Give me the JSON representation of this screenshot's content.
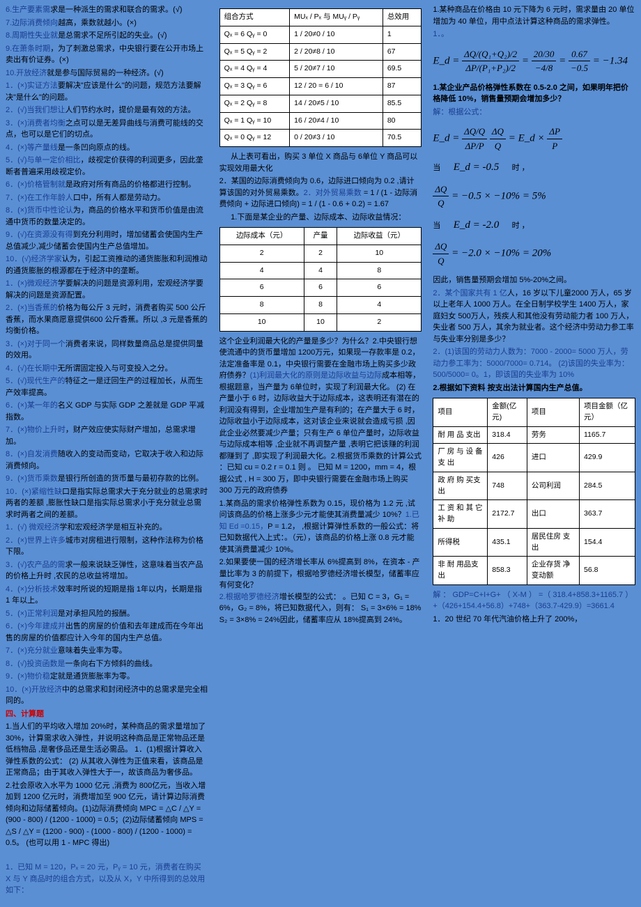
{
  "col1": {
    "items": [
      {
        "cls": "blue",
        "t": "6.生产要素需"
      },
      {
        "cls": "black",
        "t": "求是一种派生的需求和联合的需求。(√)",
        "inline": true
      },
      {
        "cls": "blue",
        "t": "7.边际消费倾向"
      },
      {
        "cls": "black",
        "t": "越高，乘数就越小。(×)",
        "inline": true
      },
      {
        "cls": "blue",
        "t": "8.周期性失业就"
      },
      {
        "cls": "black",
        "t": "是总需求不足所引起的失业。(√)",
        "inline": true
      },
      {
        "cls": "blue",
        "t": "9.在萧条时期"
      },
      {
        "cls": "black",
        "t": "，为了刺激总需求，中央银行要在公开市场上卖出有价证券。(×)",
        "inline": true
      },
      {
        "cls": "blue",
        "t": "10.开放经济"
      },
      {
        "cls": "black",
        "t": "就是参与国际贸易的一种经济。(√)",
        "inline": true
      },
      {
        "cls": "num",
        "t": "1．(×)"
      },
      {
        "cls": "blue",
        "t": "实证方法",
        "inline": true
      },
      {
        "cls": "black",
        "t": "要解决\"应该是什么\"的问题，规范方法要解决\"是什么\"的问题。",
        "inline": true
      },
      {
        "cls": "num",
        "t": "2．(√)"
      },
      {
        "cls": "blue",
        "t": "当我们想让",
        "inline": true
      },
      {
        "cls": "black",
        "t": "人们节约水时，提价是最有效的方法。",
        "inline": true
      },
      {
        "cls": "num",
        "t": "3．(×)"
      },
      {
        "cls": "blue",
        "t": "消费者均衡",
        "inline": true
      },
      {
        "cls": "black",
        "t": "之点可以是无差异曲线与消费可能线的交点，也可以是它们的切点。",
        "inline": true
      },
      {
        "cls": "num",
        "t": "4．(×)"
      },
      {
        "cls": "blue",
        "t": "等产量线",
        "inline": true
      },
      {
        "cls": "black",
        "t": "是一条凹向原点的线。",
        "inline": true
      },
      {
        "cls": "num",
        "t": "5．(√)"
      },
      {
        "cls": "blue",
        "t": "与单一定价相比",
        "inline": true
      },
      {
        "cls": "black",
        "t": "，歧视定价获得的利润更多，因此垄断者普遍采用歧视定价。",
        "inline": true
      },
      {
        "cls": "num",
        "t": "6．(×)"
      },
      {
        "cls": "blue",
        "t": "价格管制就",
        "inline": true
      },
      {
        "cls": "black",
        "t": "是政府对所有商品的价格都进行控制。",
        "inline": true
      },
      {
        "cls": "num",
        "t": "7．(×)"
      },
      {
        "cls": "blue",
        "t": "在工作年龄人",
        "inline": true
      },
      {
        "cls": "black",
        "t": "口中，所有人都是劳动力。",
        "inline": true
      },
      {
        "cls": "num",
        "t": "8．(×)"
      },
      {
        "cls": "blue",
        "t": "货币中性论认",
        "inline": true
      },
      {
        "cls": "black",
        "t": "为，商品的价格水平和货币价值是由流通中货币的数量决定的。",
        "inline": true
      },
      {
        "cls": "num",
        "t": "9．(√)"
      },
      {
        "cls": "blue",
        "t": "在资源没有得",
        "inline": true
      },
      {
        "cls": "black",
        "t": "到充分利用时，增加储蓄会使国内生产总值减少,减少储蓄会使国内生产总值增加。",
        "inline": true
      },
      {
        "cls": "num",
        "t": "10．(√)"
      },
      {
        "cls": "blue",
        "t": "经济学家",
        "inline": true
      },
      {
        "cls": "black",
        "t": "认为，引起工资推动的通货膨胀和利润推动的通货膨胀的根源都在于经济中的垄断。",
        "inline": true
      },
      {
        "cls": "num",
        "t": "1．(×)"
      },
      {
        "cls": "blue",
        "t": "微观经济",
        "inline": true
      },
      {
        "cls": "black",
        "t": "学要解决的问题是资源利用，宏观经济学要解决的问题是资源配置。",
        "inline": true
      },
      {
        "cls": "num",
        "t": "2．(×)"
      },
      {
        "cls": "blue",
        "t": "当香蕉的",
        "inline": true
      },
      {
        "cls": "black",
        "t": "价格为每公斤 3 元时，消费者购买 500 公斤香蕉，而水果商愿意提供600 公斤香蕉。所以 ,3 元是香蕉的均衡价格。",
        "inline": true
      },
      {
        "cls": "num",
        "t": "3．(×)"
      },
      {
        "cls": "blue",
        "t": "对于同一个",
        "inline": true
      },
      {
        "cls": "black",
        "t": "消费者来说，同样数量商品总是提供同量的效用。",
        "inline": true
      },
      {
        "cls": "num",
        "t": "4．(√)"
      },
      {
        "cls": "blue",
        "t": "在长期中",
        "inline": true
      },
      {
        "cls": "black",
        "t": "无所谓固定投入与可变投入之分。",
        "inline": true
      },
      {
        "cls": "num",
        "t": "5．(√)"
      },
      {
        "cls": "blue",
        "t": "现代生产的",
        "inline": true
      },
      {
        "cls": "black",
        "t": "特征之一是迂回生产的过程加长，从而生产效率提高。",
        "inline": true
      },
      {
        "cls": "num",
        "t": "6．(×)"
      },
      {
        "cls": "blue",
        "t": "某一年的",
        "inline": true
      },
      {
        "cls": "black",
        "t": "名义 GDP 与实际 GDP 之差就是 GDP 平减指数。",
        "inline": true
      },
      {
        "cls": "num",
        "t": "7．(×)"
      },
      {
        "cls": "blue",
        "t": "物价上升时",
        "inline": true
      },
      {
        "cls": "black",
        "t": "，财产效应使实际财产增加，总需求增加。",
        "inline": true
      },
      {
        "cls": "num",
        "t": "8．(×)"
      },
      {
        "cls": "blue",
        "t": "自发消费",
        "inline": true
      },
      {
        "cls": "black",
        "t": "随收入的变动而变动，它取决于收入和边际消费倾向。",
        "inline": true
      },
      {
        "cls": "num",
        "t": "9．(×)"
      },
      {
        "cls": "blue",
        "t": "货币乘数",
        "inline": true
      },
      {
        "cls": "black",
        "t": "是银行所创造的货币量与最初存款的比例。",
        "inline": true
      },
      {
        "cls": "blue",
        "t": "10．(×)"
      },
      {
        "cls": "blue",
        "t": "紧缩性缺",
        "inline": true
      },
      {
        "cls": "black",
        "t": "口是指实际总需求大于充分就业的总需求时两者的差额 ,膨胀性缺口是指实际总需求小于充分就业总需求时两者之间的差额。",
        "inline": true
      },
      {
        "cls": "num",
        "t": "1．(√) "
      },
      {
        "cls": "blue",
        "t": "微观经济",
        "inline": true
      },
      {
        "cls": "black",
        "t": "学和宏观经济学是相互补充的。",
        "inline": true
      },
      {
        "cls": "num",
        "t": "2．(×)"
      },
      {
        "cls": "blue",
        "t": "世界上许多",
        "inline": true
      },
      {
        "cls": "black",
        "t": "城市对房租进行限制，这种作法称为价格下限。",
        "inline": true
      },
      {
        "cls": "num",
        "t": "3．(√)"
      },
      {
        "cls": "blue",
        "t": "农产品的需",
        "inline": true
      },
      {
        "cls": "black",
        "t": "求一般来说缺乏弹性，这意味着当农产品的价格上升时 ,农民的总收益将增加。",
        "inline": true
      },
      {
        "cls": "num",
        "t": "4．(×)"
      },
      {
        "cls": "blue",
        "t": "分析技术",
        "inline": true
      },
      {
        "cls": "black",
        "t": "效率时所说的短期是指 1年以内，长期是指 1 年以上。",
        "inline": true
      },
      {
        "cls": "num",
        "t": "5．(×)"
      },
      {
        "cls": "blue",
        "t": "正常利润",
        "inline": true
      },
      {
        "cls": "black",
        "t": "是对承担风险的报酬。",
        "inline": true
      },
      {
        "cls": "num",
        "t": "6．(×)"
      },
      {
        "cls": "blue",
        "t": "今年建成并",
        "inline": true
      },
      {
        "cls": "black",
        "t": "出售的房屋的价值和去年建成而在今年出售的房屋的价值都应计入今年的国内生产总值。",
        "inline": true
      },
      {
        "cls": "num",
        "t": "7．(×)"
      },
      {
        "cls": "blue",
        "t": "充分就业",
        "inline": true
      },
      {
        "cls": "black",
        "t": "意味着失业率为零。",
        "inline": true
      },
      {
        "cls": "num",
        "t": "8．(√)"
      },
      {
        "cls": "blue",
        "t": "投资函数是",
        "inline": true
      },
      {
        "cls": "black",
        "t": "一条向右下方倾斜的曲线。",
        "inline": true
      },
      {
        "cls": "num",
        "t": "9．(×)"
      },
      {
        "cls": "blue",
        "t": "物价稳",
        "inline": true
      },
      {
        "cls": "black",
        "t": "定就是通货膨胀率为零。",
        "inline": true
      },
      {
        "cls": "num",
        "t": "10．(×)"
      },
      {
        "cls": "blue",
        "t": "开放经济",
        "inline": true
      },
      {
        "cls": "black",
        "t": "中的总需求和封闭经济中的总需求是完全相同的。",
        "inline": true
      }
    ],
    "sec4": "四、计算题",
    "calc1": "1.当人们的平均收入增加 20%时，某种商品的需求量增加了 30%，计算需求收入弹性，并说明这种商品是正常物品还是低档物品 ,是奢侈品还是生活必需品。        1．(1)根据计算收入弹性系数的公式：      (2) 从其收入弹性为正值来看，该商品是正常商品；由于其收入弹性大于一，故该商品为奢侈品。",
    "calc2": "2.社会原收入水平为 1000 亿元 ,消费为 800亿元，当收入增加到 1200 亿元时，消费增加至 900 亿元，请计算边际消费倾向和边际储蓄倾向。(1)边际消费倾向 MPC = △C / △Y =(900 - 800) / (1200 - 1000) = 0.5；(2)边际储蓄倾向 MPS = △S / △Y = (1200 - 900) - (1000 - 800) / (1200 - 1000) = 0.5。  (也可以用 1 - MPC 得出)",
    "calc3": "1．已知 M = 120，Pₓ = 20 元，Pᵧ = 10 元，消费者在购买 X 与 Y 商品时的组合方式，以及从 X，Y 中所得到的总效用如下："
  },
  "col2": {
    "t1": {
      "h": [
        "组合方式",
        "MUₓ / Pₓ 与 MUᵧ / Pᵧ",
        "总效用"
      ],
      "r": [
        [
          "Qₓ = 6 Qᵧ = 0",
          "1 / 20≠0 / 10",
          "1"
        ],
        [
          "Qₓ = 5 Qᵧ = 2",
          "2 / 20≠8 / 10",
          "67"
        ],
        [
          "Qₓ = 4 Qᵧ = 4",
          "5 / 20≠7 / 10",
          "69.5"
        ],
        [
          "Qₓ = 3 Qᵧ = 6",
          "12 / 20 = 6 / 10",
          "87"
        ],
        [
          "Qₓ = 2 Qᵧ = 8",
          "14 / 20≠5 / 10",
          "85.5"
        ],
        [
          "Qₓ = 1 Qᵧ = 10",
          "16 / 20≠4 / 10",
          "80"
        ],
        [
          "Qₓ = 0 Qᵧ = 12",
          "0 / 20≠3 / 10",
          "70.5"
        ]
      ]
    },
    "p1": "       从上表可看出，购买 3 单位 X 商品与 6单位 Y 商品可以实现效用最大化",
    "p2a": "2．某国的边际消费倾向为 0.6，边际进口倾向为 0.2 ,请计算该国的对外贸易乘数。",
    "p2b": "2．对外贸易乘数",
    "p2c": " = 1 / (1 - 边际消费倾向 + 边际进口倾向) = 1 / (1 - 0.6 + 0.2) = 1.67",
    "p3": "       1.下面是某企业的产量、边际成本、边际收益情况：",
    "t2": {
      "h": [
        "边际成本（元）",
        "产量",
        "边际收益（元）"
      ],
      "r": [
        [
          "2",
          "2",
          "10"
        ],
        [
          "4",
          "4",
          "8"
        ],
        [
          "6",
          "6",
          "6"
        ],
        [
          "8",
          "8",
          "4"
        ],
        [
          "10",
          "10",
          "2"
        ]
      ]
    },
    "p4": "这个企业利润最大化的产量是多少？为什么？2.中央银行想使流通中的货币量增加 1200万元，如果现一存款率是 0.2，法定准备率是 0.1，中央银行需要在金融市场上购买多少政府债券？",
    "p4b": "(1)利润最大化的原则是边际收益与边际",
    "p4c": "成本相等，根据题意，当产量为 6单位时，实现了利润最大化。  (2) 在产量小于 6 时，边际收益大于边际成本，这表明还有潜在的利润没有得到，企业增加生产是有利的；在产量大于 6 时，边际收益小于边际成本，这对该企业来说就会造成亏损 ,因此企业必然要减少产量；只有生产 6 单位产量时，边际收益与边际成本相等 ,企业就不再调整产量 ,表明它把该赚的利润都赚到了 ,即实现了利润最大化。2.根据货币乘数的计算公式 ：已知 cu = 0.2 r = 0.1 则  。  已知 M = 1200，mm = 4，根据公式    , H = 300 万，即中央银行需要在金融市场上购买 300 万元的政府债券",
    "p5": "1.某商品的需求价格弹性系数为 0.15，现价格为 1.2 元 ,试问该商品的价格上涨多少元才能使其消费量减少 10%？",
    "p5b": "1.已知 Ed =0.15，",
    "p5c": "P = 1.2，  ,根据计算弹性系数的一般公式：将已知数据代入上式：。（元），该商品的价格上涨 0.8 元才能使其消费量减少 10%。",
    "p6": "2.如果要使一国的经济增长率从 6%提高到 8%，在资本 - 产量比率为 3  的前提下，根据哈罗德经济增长模型，储蓄率应有何变化？",
    "p6b": "2.根据哈罗德经济",
    "p6c": "增长模型的公式：  。已知 C = 3，G₁ = 6%，G₂ = 8%，将已知数据代入，则有：\nS₁ = 3×6% = 18% S₂ = 3×8% = 24%因此，储蓄率应从 18%提高到 24%。"
  },
  "col3": {
    "p1": "1.某种商品在价格由 10 元下降为 6 元时，需求量由 20 单位增加为 40 单位，用中点法计算这种商品的需求弹性。",
    "p1b": "1．。",
    "f1": {
      "pre": "E_d = ",
      "n1": "ΔQ/(Q₁+Q₂)/2",
      "d1": "ΔP/(P₁+P₂)/2",
      "n2": "20/30",
      "d2": "−4/8",
      "n3": "0.67",
      "d3": "−0.5",
      "eq": " = −1.34"
    },
    "p2a": "1.某企业产品价格弹性系数在 0.5-2.0 之间，如果明年把价格降低 10%，销售量预期会增加多少？",
    "p2s": "解：根据公式：",
    "f2": {
      "a": "E_d = ",
      "n1": "ΔQ/Q",
      "d1": "ΔP/P",
      "mid": "          ",
      "n2": "ΔQ",
      "d2": "Q",
      "b": " = E_d × ",
      "n3": "ΔP",
      "d3": "P"
    },
    "p3a": "当",
    "p3b": "E_d = -0.5",
    "p3c": "时             ，",
    "f3": {
      "n": "ΔQ",
      "d": "Q",
      "r": " = −0.5 × −10% = 5%"
    },
    "p4a": "当",
    "p4b": "E_d = -2.0",
    "p4c": "时             ，",
    "f4": {
      "n": "ΔQ",
      "d": "Q",
      "r": " = −2.0 × −10% = 20%"
    },
    "p5": "因此，销售量预期会增加 5%-20%之间。",
    "p6": "2．某个国家共有 1 亿",
    "p6b": "人，16 岁以下儿童2000 万人，65 岁以上老年人 1000 万人。在全日制学校学生 1400 万人，家庭妇女 500万人，残疾人和其他没有劳动能力者 100 万人，失业者 500 万人，其余为就业者。这个经济中劳动力参工率与失业率分别是多少？",
    "p7": "2．(1)该国的劳动力人数为：7000 - 2000= 5000 万人，劳动力参工率为：5000/7000= 0.714。  (2)该国的失业率为：500/5000= 0。1，即该国的失业率为 10%",
    "p8": "2.根据如下资料  按支出法计算国内生产总值。",
    "t3": {
      "h": [
        "项目",
        "金额(亿元)",
        "项目",
        "项目金额（亿元）"
      ],
      "r": [
        [
          "耐 用 品 支出",
          "318.4",
          "劳务",
          "1165.7"
        ],
        [
          "厂 房 与 设 备 支 出",
          "426",
          "进口",
          "429.9"
        ],
        [
          "政 府 购 买支出",
          "748",
          "公司利润",
          "284.5"
        ],
        [
          "工 资 和 其 它 补 助",
          "2172.7",
          "出口",
          "363.7"
        ],
        [
          "所得税",
          "435.1",
          "居民住房 支出",
          "154.4"
        ],
        [
          "非 耐 用品支出",
          "858.3",
          "企业存货 净变动额",
          "56.8"
        ]
      ]
    },
    "ans1": "解 ：   GDP=C+I+G+   （   X-M   ）   =（     318.4+858.3+1165.7       ）      +（426+154.4+56.8）+748+（363.7-429.9）=3661.4",
    "p9": "1．20 世纪 70 年代汽油价格上升了 200%，"
  }
}
